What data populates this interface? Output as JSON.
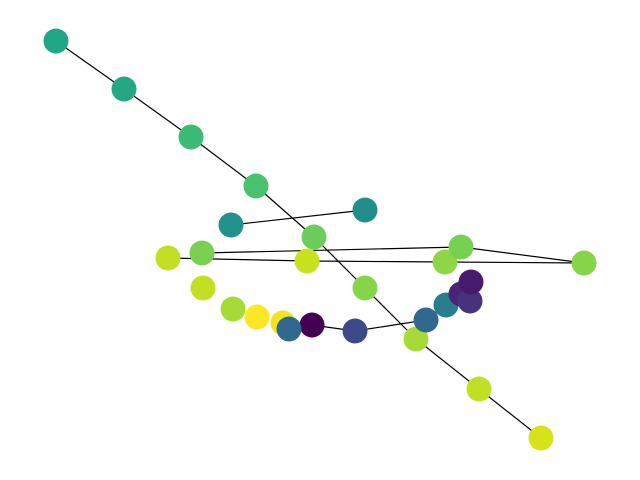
{
  "graph": {
    "nodes": [
      {
        "id": "n1",
        "color": "#21a685"
      },
      {
        "id": "n2",
        "color": "#22a884"
      },
      {
        "id": "n3",
        "color": "#3bbb75"
      },
      {
        "id": "n4",
        "color": "#4ac16d"
      },
      {
        "id": "n5",
        "color": "#6ccd5a"
      },
      {
        "id": "n6",
        "color": "#86d549"
      },
      {
        "id": "n7",
        "color": "#a5db36"
      },
      {
        "id": "n8",
        "color": "#c0df25"
      },
      {
        "id": "n9",
        "color": "#d8e219"
      },
      {
        "id": "n10",
        "color": "#21918c"
      },
      {
        "id": "n11",
        "color": "#218e8d"
      },
      {
        "id": "n12",
        "color": "#c2df23"
      },
      {
        "id": "n13",
        "color": "#cae11f"
      },
      {
        "id": "n14",
        "color": "#8ed645"
      },
      {
        "id": "n15",
        "color": "#86d549"
      },
      {
        "id": "n16",
        "color": "#75d054"
      },
      {
        "id": "n17",
        "color": "#7ad151"
      },
      {
        "id": "n18",
        "color": "#c2df23"
      },
      {
        "id": "n19",
        "color": "#a5db36"
      },
      {
        "id": "n20",
        "color": "#fde725"
      },
      {
        "id": "n21",
        "color": "#f1e51d"
      },
      {
        "id": "n22",
        "color": "#440154"
      },
      {
        "id": "n23",
        "color": "#31688e"
      },
      {
        "id": "n24",
        "color": "#3e4989"
      },
      {
        "id": "n25",
        "color": "#31688e"
      },
      {
        "id": "n26",
        "color": "#287d8e"
      },
      {
        "id": "n27",
        "color": "#482576"
      },
      {
        "id": "n28",
        "color": "#46327e"
      },
      {
        "id": "n29",
        "color": "#481a6c"
      }
    ],
    "edges": [
      [
        "n1",
        "n2"
      ],
      [
        "n2",
        "n3"
      ],
      [
        "n3",
        "n4"
      ],
      [
        "n4",
        "n5"
      ],
      [
        "n5",
        "n6"
      ],
      [
        "n6",
        "n7"
      ],
      [
        "n7",
        "n8"
      ],
      [
        "n8",
        "n9"
      ],
      [
        "n10",
        "n11"
      ],
      [
        "n12",
        "n13"
      ],
      [
        "n13",
        "n14"
      ],
      [
        "n14",
        "n15"
      ],
      [
        "n15",
        "n16"
      ],
      [
        "n16",
        "n17"
      ],
      [
        "n23",
        "n22"
      ],
      [
        "n22",
        "n24"
      ],
      [
        "n24",
        "n25"
      ],
      [
        "n25",
        "n26"
      ],
      [
        "n26",
        "n27"
      ],
      [
        "n27",
        "n28"
      ],
      [
        "n28",
        "n29"
      ]
    ]
  }
}
